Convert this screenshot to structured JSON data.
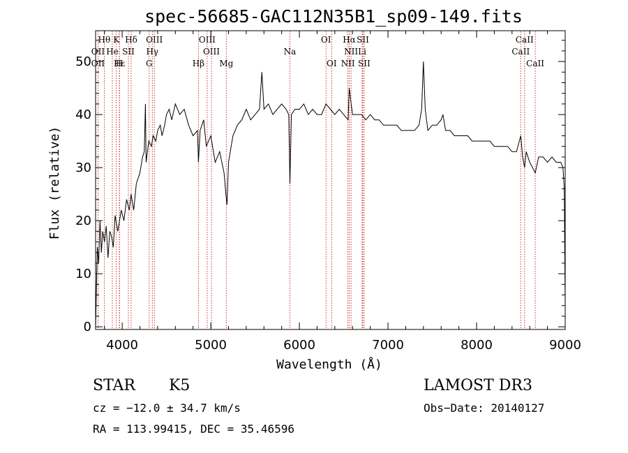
{
  "chart_data": {
    "type": "line",
    "title": "spec-56685-GAC112N35B1_sp09-149.fits",
    "xlabel": "Wavelength (Å)",
    "ylabel": "Flux (relative)",
    "xlim": [
      3700,
      9000
    ],
    "ylim": [
      -0.5,
      55.8
    ],
    "xticks": [
      4000,
      5000,
      6000,
      7000,
      8000,
      9000
    ],
    "yticks": [
      0,
      10,
      20,
      30,
      40,
      50
    ],
    "grid": false,
    "line_color": "#000000",
    "marker_color": "#c00000",
    "series": [
      {
        "x": [
          3700,
          3710,
          3720,
          3735,
          3750,
          3765,
          3780,
          3800,
          3820,
          3840,
          3860,
          3880,
          3900,
          3920,
          3950,
          3970,
          3990,
          4020,
          4050,
          4080,
          4100,
          4130,
          4160,
          4200,
          4230,
          4250,
          4262,
          4270,
          4300,
          4330,
          4350,
          4380,
          4400,
          4430,
          4450,
          4480,
          4500,
          4530,
          4560,
          4600,
          4650,
          4700,
          4750,
          4800,
          4850,
          4861,
          4880,
          4920,
          4950,
          5000,
          5050,
          5100,
          5150,
          5170,
          5183,
          5200,
          5250,
          5300,
          5350,
          5400,
          5450,
          5500,
          5550,
          5577,
          5600,
          5650,
          5700,
          5750,
          5800,
          5850,
          5880,
          5893,
          5910,
          5950,
          6000,
          6050,
          6100,
          6150,
          6200,
          6250,
          6300,
          6350,
          6400,
          6450,
          6500,
          6550,
          6563,
          6600,
          6650,
          6700,
          6750,
          6800,
          6850,
          6900,
          6950,
          7000,
          7050,
          7100,
          7150,
          7200,
          7250,
          7300,
          7350,
          7380,
          7400,
          7420,
          7450,
          7500,
          7550,
          7600,
          7620,
          7650,
          7700,
          7750,
          7800,
          7850,
          7900,
          7950,
          8000,
          8050,
          8100,
          8150,
          8200,
          8250,
          8300,
          8350,
          8400,
          8450,
          8498,
          8520,
          8542,
          8560,
          8600,
          8662,
          8700,
          8750,
          8800,
          8850,
          8900,
          8950,
          8975,
          8990,
          9000
        ],
        "y": [
          0,
          8,
          15,
          12,
          20,
          14,
          18,
          16,
          19,
          13,
          18,
          17,
          15,
          21,
          18,
          20,
          22,
          20,
          24,
          22,
          25,
          22,
          27,
          29,
          32,
          33,
          42,
          31,
          35,
          34,
          36,
          35,
          37,
          38,
          36,
          38,
          40,
          41,
          39,
          42,
          40,
          41,
          38,
          36,
          37,
          31,
          37,
          39,
          34,
          36,
          31,
          33,
          29,
          25,
          23,
          31,
          36,
          38,
          39,
          41,
          39,
          40,
          41,
          48,
          41,
          42,
          40,
          41,
          42,
          41,
          40,
          27,
          40,
          41,
          41,
          42,
          40,
          41,
          40,
          40,
          42,
          41,
          40,
          41,
          40,
          39,
          45,
          40,
          40,
          40,
          39,
          40,
          39,
          39,
          38,
          38,
          38,
          38,
          37,
          37,
          37,
          37,
          38,
          41,
          50,
          41,
          37,
          38,
          38,
          39,
          40,
          37,
          37,
          36,
          36,
          36,
          36,
          35,
          35,
          35,
          35,
          35,
          34,
          34,
          34,
          34,
          33,
          33,
          36,
          32,
          30,
          33,
          31,
          29,
          32,
          32,
          31,
          32,
          31,
          31,
          30,
          26,
          4
        ]
      }
    ],
    "line_markers": [
      {
        "label": "Hθ",
        "x": 3798,
        "row": 1
      },
      {
        "label": "K",
        "x": 3934,
        "row": 1
      },
      {
        "label": "Hδ",
        "x": 4102,
        "row": 1
      },
      {
        "label": "OIII",
        "x": 4363,
        "row": 1
      },
      {
        "label": "OIII",
        "x": 4959,
        "row": 1
      },
      {
        "label": "OI",
        "x": 6300,
        "row": 1
      },
      {
        "label": "Hα",
        "x": 6563,
        "row": 1
      },
      {
        "label": "SII",
        "x": 6716,
        "row": 1
      },
      {
        "label": "CaII",
        "x": 8542,
        "row": 1
      },
      {
        "label": "OII",
        "x": 3727,
        "row": 2
      },
      {
        "label": "He",
        "x": 3889,
        "row": 2
      },
      {
        "label": "SII",
        "x": 4070,
        "row": 2
      },
      {
        "label": "Hγ",
        "x": 4340,
        "row": 2
      },
      {
        "label": "OIII",
        "x": 5007,
        "row": 2
      },
      {
        "label": "Na",
        "x": 5893,
        "row": 2
      },
      {
        "label": "NII",
        "x": 6583,
        "row": 2
      },
      {
        "label": "Li",
        "x": 6708,
        "row": 2
      },
      {
        "label": "CaII",
        "x": 8498,
        "row": 2
      },
      {
        "label": "OII",
        "x": 3727,
        "row": 3
      },
      {
        "label": "Hε",
        "x": 3970,
        "row": 3
      },
      {
        "label": "H",
        "x": 3968,
        "row": 3
      },
      {
        "label": "G",
        "x": 4305,
        "row": 3
      },
      {
        "label": "Hβ",
        "x": 4861,
        "row": 3
      },
      {
        "label": "Mg",
        "x": 5175,
        "row": 3
      },
      {
        "label": "OI",
        "x": 6364,
        "row": 3
      },
      {
        "label": "NII",
        "x": 6548,
        "row": 3
      },
      {
        "label": "SII",
        "x": 6731,
        "row": 3
      },
      {
        "label": "CaII",
        "x": 8662,
        "row": 3
      }
    ]
  },
  "info": {
    "object_class": "STAR",
    "subclass": "K5",
    "survey": "LAMOST DR3",
    "cz_line": "cz = −12.0 ± 34.7 km/s",
    "obs_date": "Obs−Date: 20140127",
    "coords": "RA = 113.99415, DEC =  35.46596"
  }
}
